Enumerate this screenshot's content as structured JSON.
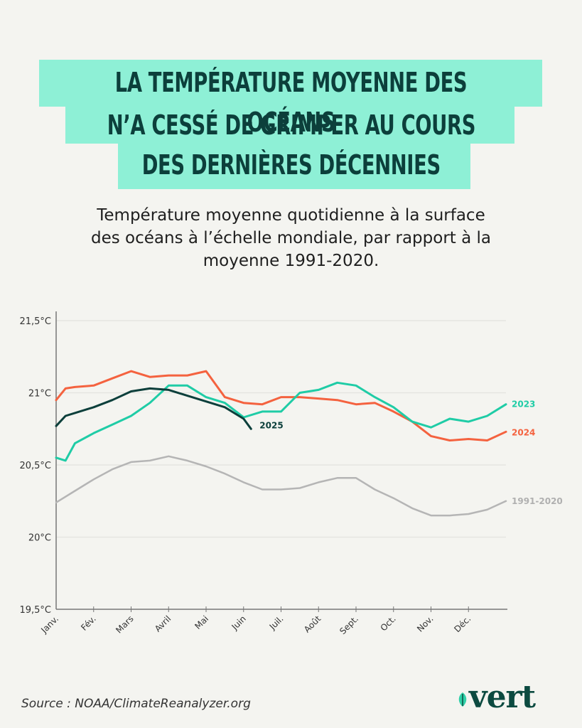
{
  "header": {
    "title_lines": [
      "LA TEMPÉRATURE MOYENNE DES OCÉANS",
      "N’A CESSÉ DE GRIMPER AU COURS",
      "DES DERNIÈRES DÉCENNIES"
    ],
    "subtitle_lines": [
      "Température moyenne quotidienne à la surface",
      "des océans à l’échelle mondiale, par rapport à la",
      "moyenne 1991-2020."
    ]
  },
  "footer": {
    "source": "Source : NOAA/ClimateReanalyzer.org",
    "logo": "vert"
  },
  "colors": {
    "title_bg": "#8ef0d6",
    "title_text": "#0c3f3b",
    "s2023": "#1fcca6",
    "s2024": "#f4623f",
    "s2025": "#0c3f3b",
    "baseline": "#b5b5b5"
  },
  "chart_data": {
    "type": "line",
    "title": "Température moyenne quotidienne à la surface des océans à l’échelle mondiale, par rapport à la moyenne 1991-2020.",
    "xlabel": "",
    "ylabel": "",
    "ylim": [
      19.5,
      21.5
    ],
    "yticks": [
      21.5,
      21.0,
      20.5,
      20.0,
      19.5
    ],
    "ytick_labels": [
      "21,5°C",
      "21°C",
      "20,5°C",
      "20°C",
      "19,5°C"
    ],
    "categories": [
      "Janv.",
      "Fév.",
      "Mars",
      "Avril",
      "Mai",
      "Juin",
      "Juil.",
      "Août",
      "Sept.",
      "Oct.",
      "Nov.",
      "Déc."
    ],
    "grid": true,
    "legend": "inline-right",
    "x_unit": "month (0 = 1 Jan, 12 = 31 Dec)",
    "series": [
      {
        "name": "1991-2020",
        "color_key": "baseline",
        "x": [
          0,
          0.5,
          1,
          1.5,
          2,
          2.5,
          3,
          3.5,
          4,
          4.5,
          5,
          5.5,
          6,
          6.5,
          7,
          7.5,
          8,
          8.5,
          9,
          9.5,
          10,
          10.5,
          11,
          11.5,
          12
        ],
        "values": [
          20.24,
          20.32,
          20.4,
          20.47,
          20.52,
          20.53,
          20.56,
          20.53,
          20.49,
          20.44,
          20.38,
          20.33,
          20.33,
          20.34,
          20.38,
          20.41,
          20.41,
          20.33,
          20.27,
          20.2,
          20.15,
          20.15,
          20.16,
          20.19,
          20.25
        ]
      },
      {
        "name": "2023",
        "color_key": "s2023",
        "x": [
          0,
          0.25,
          0.5,
          1,
          1.5,
          2,
          2.5,
          3,
          3.5,
          4,
          4.5,
          5,
          5.5,
          6,
          6.5,
          7,
          7.5,
          8,
          8.5,
          9,
          9.5,
          10,
          10.5,
          11,
          11.5,
          12
        ],
        "values": [
          20.55,
          20.53,
          20.65,
          20.72,
          20.78,
          20.84,
          20.93,
          21.05,
          21.05,
          20.97,
          20.93,
          20.83,
          20.87,
          20.87,
          21.0,
          21.02,
          21.07,
          21.05,
          20.97,
          20.9,
          20.8,
          20.76,
          20.82,
          20.8,
          20.84,
          20.92
        ]
      },
      {
        "name": "2024",
        "color_key": "s2024",
        "x": [
          0,
          0.25,
          0.5,
          1,
          1.5,
          2,
          2.5,
          3,
          3.5,
          4,
          4.5,
          5,
          5.5,
          6,
          6.5,
          7,
          7.5,
          8,
          8.5,
          9,
          9.5,
          10,
          10.5,
          11,
          11.5,
          12
        ],
        "values": [
          20.95,
          21.03,
          21.04,
          21.05,
          21.1,
          21.15,
          21.11,
          21.12,
          21.12,
          21.15,
          20.97,
          20.93,
          20.92,
          20.97,
          20.97,
          20.96,
          20.95,
          20.92,
          20.93,
          20.87,
          20.8,
          20.7,
          20.67,
          20.68,
          20.67,
          20.73
        ]
      },
      {
        "name": "2025",
        "color_key": "s2025",
        "x": [
          0,
          0.25,
          0.5,
          1,
          1.5,
          2,
          2.5,
          3,
          3.5,
          4,
          4.5,
          5,
          5.2
        ],
        "values": [
          20.77,
          20.84,
          20.86,
          20.9,
          20.95,
          21.01,
          21.03,
          21.02,
          20.98,
          20.94,
          20.9,
          20.82,
          20.75
        ]
      }
    ]
  }
}
